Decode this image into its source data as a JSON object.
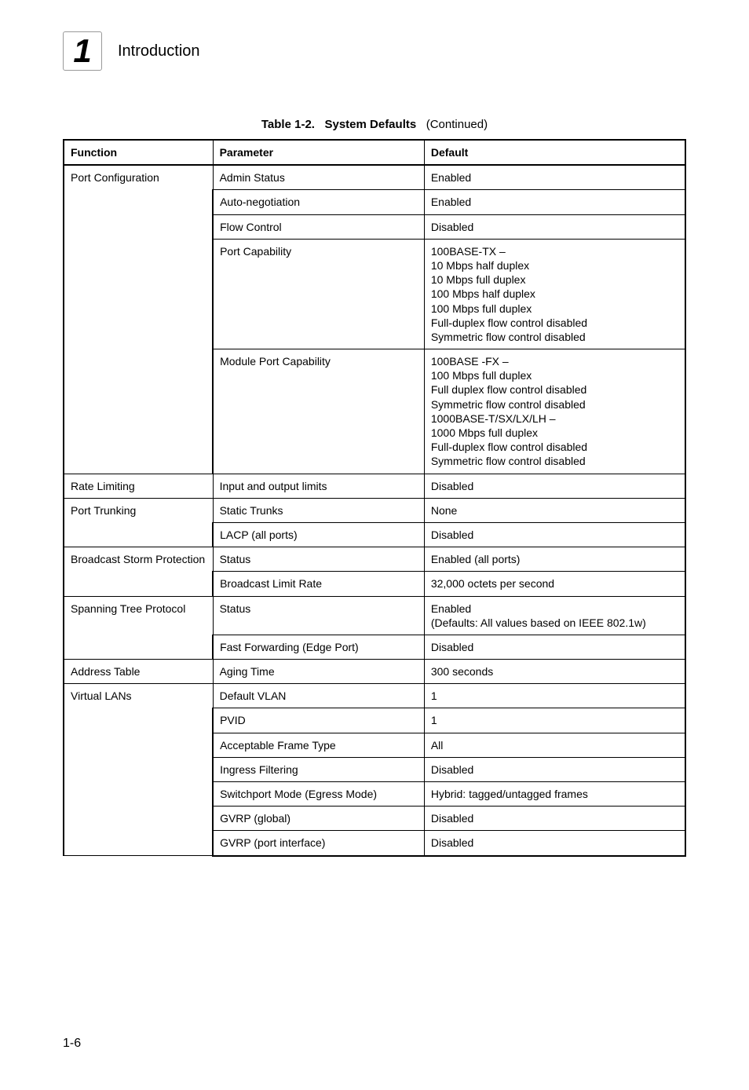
{
  "header": {
    "chapter_number": "1",
    "chapter_title": "Introduction"
  },
  "table_caption": {
    "label": "Table 1-2.",
    "title": "System Defaults",
    "suffix": "(Continued)"
  },
  "columns": {
    "c1": "Function",
    "c2": "Parameter",
    "c3": "Default"
  },
  "rows": {
    "r0": {
      "fn": "Port Configuration",
      "param": "Admin Status",
      "def": "Enabled"
    },
    "r1": {
      "param": "Auto-negotiation",
      "def": "Enabled"
    },
    "r2": {
      "param": "Flow Control",
      "def": "Disabled"
    },
    "r3": {
      "param": "Port Capability",
      "def": "100BASE-TX –\n10 Mbps half duplex\n10 Mbps full duplex\n100 Mbps half duplex\n100 Mbps full duplex\nFull-duplex flow control disabled\nSymmetric flow control disabled"
    },
    "r4": {
      "param": "Module Port Capability",
      "def": "100BASE -FX –\n100 Mbps full duplex\nFull duplex flow control disabled\nSymmetric flow control disabled\n1000BASE-T/SX/LX/LH –\n1000 Mbps full duplex\nFull-duplex flow control disabled\nSymmetric flow control disabled"
    },
    "r5": {
      "fn": "Rate Limiting",
      "param": "Input and output limits",
      "def": "Disabled"
    },
    "r6": {
      "fn": "Port Trunking",
      "param": "Static Trunks",
      "def": "None"
    },
    "r7": {
      "param": "LACP (all ports)",
      "def": "Disabled"
    },
    "r8": {
      "fn": "Broadcast Storm Protection",
      "param": "Status",
      "def": "Enabled (all ports)"
    },
    "r9": {
      "param": "Broadcast Limit Rate",
      "def": "32,000 octets per second"
    },
    "r10": {
      "fn": "Spanning Tree Protocol",
      "param": "Status",
      "def": "Enabled\n(Defaults: All values based on IEEE 802.1w)"
    },
    "r11": {
      "param": "Fast Forwarding (Edge Port)",
      "def": "Disabled"
    },
    "r12": {
      "fn": "Address Table",
      "param": "Aging Time",
      "def": "300 seconds"
    },
    "r13": {
      "fn": "Virtual LANs",
      "param": "Default VLAN",
      "def": "1"
    },
    "r14": {
      "param": "PVID",
      "def": "1"
    },
    "r15": {
      "param": "Acceptable Frame Type",
      "def": "All"
    },
    "r16": {
      "param": "Ingress Filtering",
      "def": "Disabled"
    },
    "r17": {
      "param": "Switchport Mode (Egress Mode)",
      "def": "Hybrid: tagged/untagged frames"
    },
    "r18": {
      "param": "GVRP (global)",
      "def": "Disabled"
    },
    "r19": {
      "param": "GVRP (port interface)",
      "def": "Disabled"
    }
  },
  "page_number": "1-6"
}
